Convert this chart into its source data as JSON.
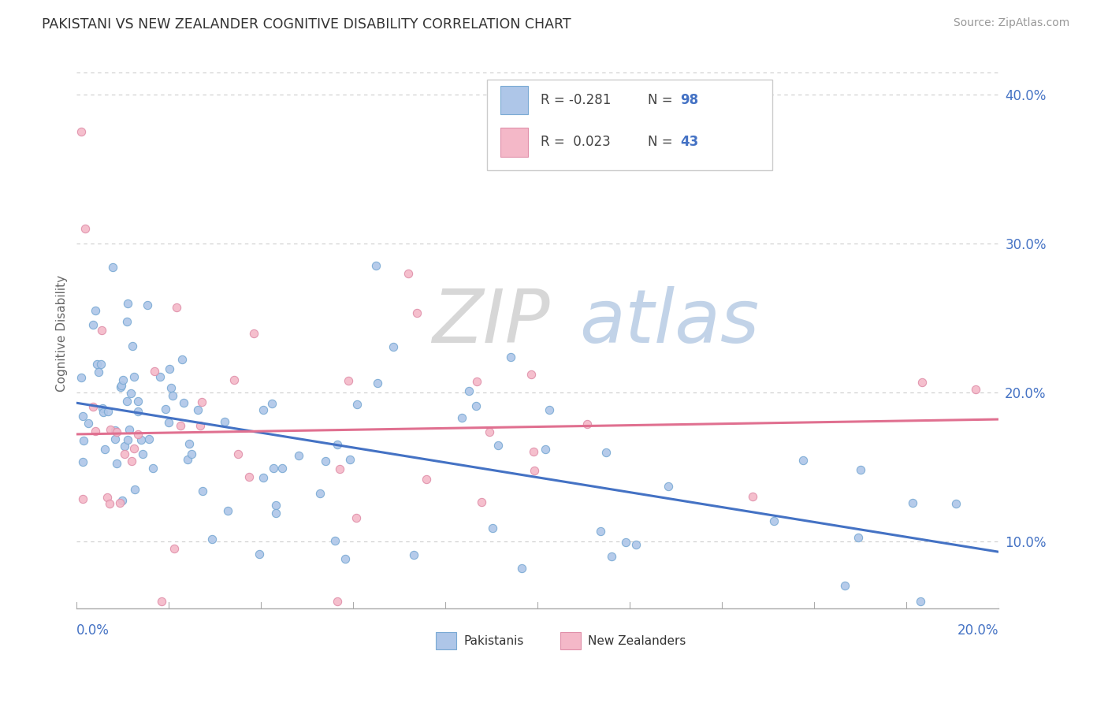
{
  "title": "PAKISTANI VS NEW ZEALANDER COGNITIVE DISABILITY CORRELATION CHART",
  "source": "Source: ZipAtlas.com",
  "ylabel": "Cognitive Disability",
  "x_min": 0.0,
  "x_max": 0.2,
  "y_min": 0.055,
  "y_max": 0.425,
  "y_ticks": [
    0.1,
    0.2,
    0.3,
    0.4
  ],
  "y_tick_labels": [
    "10.0%",
    "20.0%",
    "30.0%",
    "40.0%"
  ],
  "color_pakistani_fill": "#aec6e8",
  "color_pakistani_edge": "#7aaad4",
  "color_nz_fill": "#f4b8c8",
  "color_nz_edge": "#e090aa",
  "color_line_pakistani": "#4472c4",
  "color_line_nz": "#e07090",
  "color_axis_text": "#4472c4",
  "color_grid": "#cccccc",
  "watermark_zip_color": "#d0d0d0",
  "watermark_atlas_color": "#b8cce4",
  "legend_r1": "R = -0.281",
  "legend_n1": "98",
  "legend_r2": "R =  0.023",
  "legend_n2": "43",
  "pak_trend_x0": 0.0,
  "pak_trend_y0": 0.193,
  "pak_trend_x1": 0.2,
  "pak_trend_y1": 0.093,
  "nz_trend_x0": 0.0,
  "nz_trend_y0": 0.172,
  "nz_trend_x1": 0.2,
  "nz_trend_y1": 0.182
}
